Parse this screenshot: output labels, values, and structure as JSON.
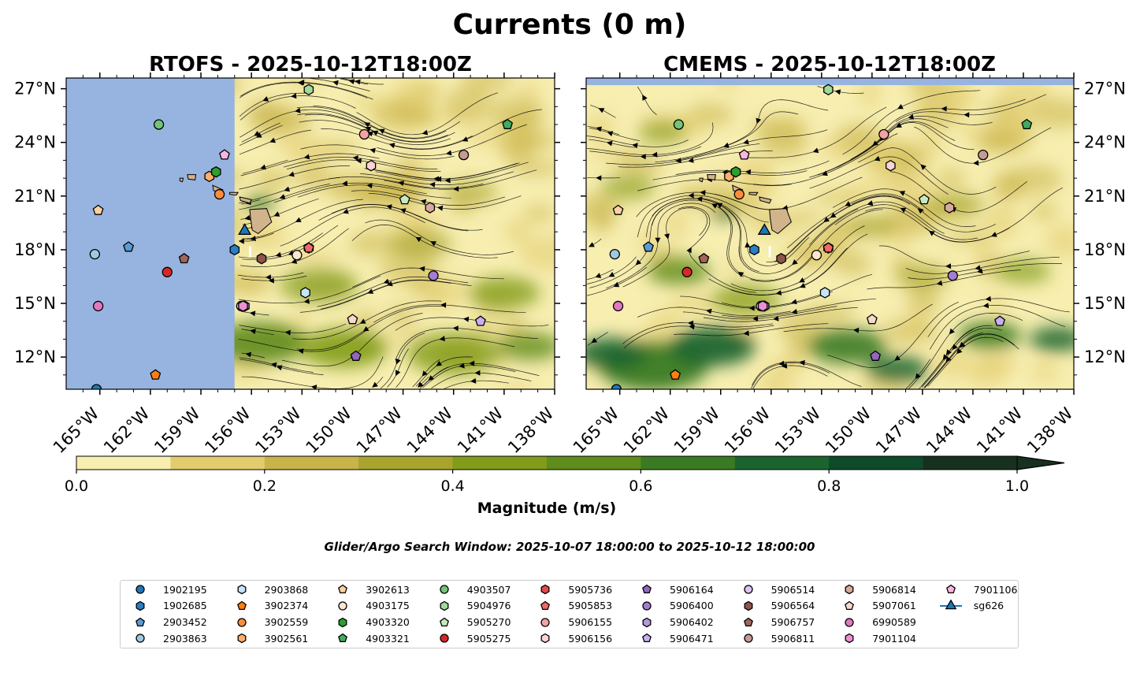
{
  "figure": {
    "title": "Currents (0 m)",
    "search_window": "Glider/Argo Search Window: 2025-10-07 18:00:00 to 2025-10-12 18:00:00"
  },
  "panels": [
    {
      "title": "RTOFS - 2025-10-12T18:00Z",
      "coverage_west_lon": -157.0
    },
    {
      "title": "CMEMS - 2025-10-12T18:00Z",
      "coverage_north_lat": 27.2
    }
  ],
  "colorbar": {
    "label": "Magnitude (m/s)",
    "ticks": [
      "0.0",
      "0.2",
      "0.4",
      "0.6",
      "0.8",
      "1.0"
    ],
    "levels": [
      0,
      0.1,
      0.2,
      0.3,
      0.4,
      0.5,
      0.6,
      0.7,
      0.8,
      0.9,
      1.0
    ],
    "colors": [
      "#f7eeb0",
      "#e2cc6e",
      "#c9b44a",
      "#a8a42e",
      "#829c1a",
      "#5f8c1c",
      "#3a7a22",
      "#1b6430",
      "#0f4a2a",
      "#17301f"
    ],
    "extend": "max"
  },
  "map": {
    "lon_range": [
      -167,
      -138
    ],
    "lat_range": [
      10.2,
      27.6
    ],
    "lon_ticks": [
      "165°W",
      "162°W",
      "159°W",
      "156°W",
      "153°W",
      "150°W",
      "147°W",
      "144°W",
      "141°W",
      "138°W"
    ],
    "lon_tick_values": [
      -165,
      -162,
      -159,
      -156,
      -153,
      -150,
      -147,
      -144,
      -141,
      -138
    ],
    "lat_ticks": [
      "27°N",
      "24°N",
      "21°N",
      "18°N",
      "15°N",
      "12°N"
    ],
    "lat_tick_values": [
      27,
      24,
      21,
      18,
      15,
      12
    ],
    "land_color": "#d2b48c",
    "nodata_color": "#97b4e0"
  },
  "colors": {
    "c1902195": "#1f77b4",
    "c1902685": "#2a7fc4",
    "c2903452": "#5a9bd5",
    "c2903863": "#9ecae1",
    "c2903868": "#c6e5f5",
    "c3902374": "#ff7f0e",
    "c3902559": "#fd8d3c",
    "c3902561": "#fdae6b",
    "c3902613": "#fdd0a2",
    "c4903175": "#fee6ce",
    "c4903320": "#2ca02c",
    "c4903321": "#41ab5d",
    "c4903507": "#74c476",
    "c5904976": "#a1d99b",
    "c5905270": "#c7e9c0",
    "c5905275": "#d62728",
    "c5905736": "#e34a4a",
    "c5905853": "#f06868",
    "c5906155": "#f4a3a3",
    "c5906156": "#fcd3d3",
    "c5906164": "#9467bd",
    "c5906400": "#a37ccf",
    "c5906402": "#b39ad8",
    "c5906471": "#c9aef0",
    "c5906514": "#dfc3f4",
    "c5906564": "#8c564b",
    "c5906757": "#a0665a",
    "c5906811": "#c49c94",
    "c5906814": "#d8a99c",
    "c5907061": "#f7d8cd",
    "c6990589": "#e377c2",
    "c7901104": "#ec8fd0",
    "c7901106": "#f7b6e2",
    "csg626": "#1f77b4"
  },
  "platforms": [
    {
      "id": "1902195",
      "marker": "circle",
      "color": "#1f77b4",
      "lon": -165.2,
      "lat": 10.2
    },
    {
      "id": "1902685",
      "marker": "hexagon",
      "color": "#2a7fc4",
      "lon": -157.0,
      "lat": 18.0
    },
    {
      "id": "2903452",
      "marker": "pentagon",
      "color": "#5a9bd5",
      "lon": -163.3,
      "lat": 18.15
    },
    {
      "id": "2903863",
      "marker": "circle",
      "color": "#9ecae1",
      "lon": -165.3,
      "lat": 17.75
    },
    {
      "id": "2903868",
      "marker": "hexagon",
      "color": "#c6e5f5",
      "lon": -152.8,
      "lat": 15.6
    },
    {
      "id": "3902374",
      "marker": "pentagon",
      "color": "#ff7f0e",
      "lon": -161.7,
      "lat": 11.0
    },
    {
      "id": "3902559",
      "marker": "circle",
      "color": "#fd8d3c",
      "lon": -157.9,
      "lat": 21.1
    },
    {
      "id": "3902561",
      "marker": "hexagon",
      "color": "#fdae6b",
      "lon": -158.5,
      "lat": 22.1
    },
    {
      "id": "3902613",
      "marker": "pentagon",
      "color": "#fdd0a2",
      "lon": -165.1,
      "lat": 20.2
    },
    {
      "id": "4903175",
      "marker": "circle",
      "color": "#fee6ce",
      "lon": -153.3,
      "lat": 17.7
    },
    {
      "id": "4903320",
      "marker": "hexagon",
      "color": "#2ca02c",
      "lon": -158.1,
      "lat": 22.35
    },
    {
      "id": "4903321",
      "marker": "pentagon",
      "color": "#41ab5d",
      "lon": -140.8,
      "lat": 25.0
    },
    {
      "id": "4903507",
      "marker": "circle",
      "color": "#74c476",
      "lon": -161.5,
      "lat": 25.0
    },
    {
      "id": "5904976",
      "marker": "hexagon",
      "color": "#a1d99b",
      "lon": -152.6,
      "lat": 26.95
    },
    {
      "id": "5905270",
      "marker": "pentagon",
      "color": "#c7e9c0",
      "lon": -146.9,
      "lat": 20.8
    },
    {
      "id": "5905275",
      "marker": "circle",
      "color": "#d62728",
      "lon": -161.0,
      "lat": 16.75
    },
    {
      "id": "5905736",
      "marker": "hexagon",
      "color": "#e34a4a",
      "lon": -152.6,
      "lat": 18.1
    },
    {
      "id": "5905853",
      "marker": "pentagon",
      "color": "#f06868",
      "lon": -152.6,
      "lat": 18.1
    },
    {
      "id": "5906155",
      "marker": "circle",
      "color": "#f4a3a3",
      "lon": -149.3,
      "lat": 24.45
    },
    {
      "id": "5906156",
      "marker": "hexagon",
      "color": "#fcd3d3",
      "lon": -148.9,
      "lat": 22.7
    },
    {
      "id": "5906164",
      "marker": "pentagon",
      "color": "#9467bd",
      "lon": -149.8,
      "lat": 12.05
    },
    {
      "id": "5906400",
      "marker": "circle",
      "color": "#a37ccf",
      "lon": -145.2,
      "lat": 16.55
    },
    {
      "id": "5906402",
      "marker": "hexagon",
      "color": "#b39ad8",
      "lon": -156.4,
      "lat": 14.85
    },
    {
      "id": "5906471",
      "marker": "pentagon",
      "color": "#c9aef0",
      "lon": -142.4,
      "lat": 14.0
    },
    {
      "id": "5906514",
      "marker": "circle",
      "color": "#dfc3f4",
      "lon": -156.6,
      "lat": 14.85
    },
    {
      "id": "5906564",
      "marker": "hexagon",
      "color": "#8c564b",
      "lon": -155.4,
      "lat": 17.5
    },
    {
      "id": "5906757",
      "marker": "pentagon",
      "color": "#a0665a",
      "lon": -160.0,
      "lat": 17.5
    },
    {
      "id": "5906811",
      "marker": "circle",
      "color": "#c49c94",
      "lon": -143.4,
      "lat": 23.3
    },
    {
      "id": "5906814",
      "marker": "hexagon",
      "color": "#d8a99c",
      "lon": -145.4,
      "lat": 20.35
    },
    {
      "id": "5907061",
      "marker": "pentagon",
      "color": "#f7d8cd",
      "lon": -150.0,
      "lat": 14.1
    },
    {
      "id": "6990589",
      "marker": "circle",
      "color": "#e377c2",
      "lon": -165.1,
      "lat": 14.85
    },
    {
      "id": "7901104",
      "marker": "hexagon",
      "color": "#ec8fd0",
      "lon": -156.5,
      "lat": 14.85
    },
    {
      "id": "7901106",
      "marker": "pentagon",
      "color": "#f7b6e2",
      "lon": -157.6,
      "lat": 23.3
    },
    {
      "id": "sg626",
      "marker": "triangle",
      "color": "#1f77b4",
      "lon": -156.4,
      "lat": 19.05
    }
  ],
  "legend": [
    {
      "label": "1902195",
      "marker": "circle",
      "color": "#1f77b4"
    },
    {
      "label": "1902685",
      "marker": "hexagon",
      "color": "#2a7fc4"
    },
    {
      "label": "2903452",
      "marker": "pentagon",
      "color": "#5a9bd5"
    },
    {
      "label": "2903863",
      "marker": "circle",
      "color": "#9ecae1"
    },
    {
      "label": "2903868",
      "marker": "hexagon",
      "color": "#c6e5f5"
    },
    {
      "label": "3902374",
      "marker": "pentagon",
      "color": "#ff7f0e"
    },
    {
      "label": "3902559",
      "marker": "circle",
      "color": "#fd8d3c"
    },
    {
      "label": "3902561",
      "marker": "hexagon",
      "color": "#fdae6b"
    },
    {
      "label": "3902613",
      "marker": "pentagon",
      "color": "#fdd0a2"
    },
    {
      "label": "4903175",
      "marker": "circle",
      "color": "#fee6ce"
    },
    {
      "label": "4903320",
      "marker": "hexagon",
      "color": "#2ca02c"
    },
    {
      "label": "4903321",
      "marker": "pentagon",
      "color": "#41ab5d"
    },
    {
      "label": "4903507",
      "marker": "circle",
      "color": "#74c476"
    },
    {
      "label": "5904976",
      "marker": "hexagon",
      "color": "#a1d99b"
    },
    {
      "label": "5905270",
      "marker": "pentagon",
      "color": "#c7e9c0"
    },
    {
      "label": "5905275",
      "marker": "circle",
      "color": "#d62728"
    },
    {
      "label": "5905736",
      "marker": "hexagon",
      "color": "#e34a4a"
    },
    {
      "label": "5905853",
      "marker": "pentagon",
      "color": "#f06868"
    },
    {
      "label": "5906155",
      "marker": "circle",
      "color": "#f4a3a3"
    },
    {
      "label": "5906156",
      "marker": "hexagon",
      "color": "#fcd3d3"
    },
    {
      "label": "5906164",
      "marker": "pentagon",
      "color": "#9467bd"
    },
    {
      "label": "5906400",
      "marker": "circle",
      "color": "#a37ccf"
    },
    {
      "label": "5906402",
      "marker": "hexagon",
      "color": "#b39ad8"
    },
    {
      "label": "5906471",
      "marker": "pentagon",
      "color": "#c9aef0"
    },
    {
      "label": "5906514",
      "marker": "circle",
      "color": "#dfc3f4"
    },
    {
      "label": "5906564",
      "marker": "hexagon",
      "color": "#8c564b"
    },
    {
      "label": "5906757",
      "marker": "pentagon",
      "color": "#a0665a"
    },
    {
      "label": "5906811",
      "marker": "circle",
      "color": "#c49c94"
    },
    {
      "label": "5906814",
      "marker": "hexagon",
      "color": "#d8a99c"
    },
    {
      "label": "5907061",
      "marker": "pentagon",
      "color": "#f7d8cd"
    },
    {
      "label": "6990589",
      "marker": "circle",
      "color": "#e377c2"
    },
    {
      "label": "7901104",
      "marker": "hexagon",
      "color": "#ec8fd0"
    },
    {
      "label": "7901106",
      "marker": "pentagon",
      "color": "#f7b6e2"
    },
    {
      "label": "sg626",
      "marker": "triangle",
      "color": "#1f77b4"
    }
  ]
}
